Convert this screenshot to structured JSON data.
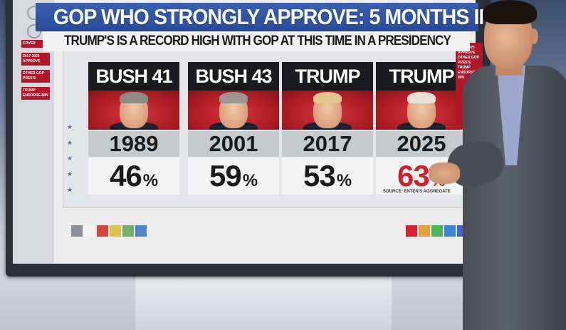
{
  "graphic": {
    "title": "GOP WHO STRONGLY APPROVE: 5 MONTHS IN",
    "subtitle": "TRUMP'S IS A RECORD HIGH WITH GOP AT THIS TIME IN A PRESIDENCY",
    "source": "SOURCE: ENTEN'S AGGREGATE"
  },
  "left_nav": {
    "cards": [
      {
        "label": "COVER"
      },
      {
        "label": "2017 2025 APPROVE"
      },
      {
        "label": "OTHER GOP PRES'S"
      },
      {
        "label": "TRUMP ENDORSE-MIN"
      }
    ]
  },
  "right_nav": {
    "label": "2017 2025 APPROVE OTHER GOP PRES'S TRUMP ENDORSE-MIN"
  },
  "presidents": [
    {
      "name": "BUSH 41",
      "year": "1989",
      "pct": "46",
      "sign": "%",
      "highlight": false,
      "hair": "#8f8a86"
    },
    {
      "name": "BUSH 43",
      "year": "2001",
      "pct": "59",
      "sign": "%",
      "highlight": false,
      "hair": "#9a9792"
    },
    {
      "name": "TRUMP",
      "year": "2017",
      "pct": "53",
      "sign": "%",
      "highlight": false,
      "hair": "#e3c58d"
    },
    {
      "name": "TRUMP",
      "year": "2025",
      "pct": "63",
      "sign": "%",
      "highlight": true,
      "hair": "#e8e0d4"
    }
  ],
  "colors": {
    "accent_red": "#d0212a",
    "title_blue": "#2f56a6",
    "chips_left": [
      "#8a8f99",
      "#f2f2f2",
      "#d24a3c",
      "#d8c54a",
      "#6fb36b",
      "#4a86c8"
    ],
    "chips_right": [
      "#d9203a",
      "#e7a13b",
      "#4db55a",
      "#3d86d6",
      "#3f66c5"
    ]
  }
}
